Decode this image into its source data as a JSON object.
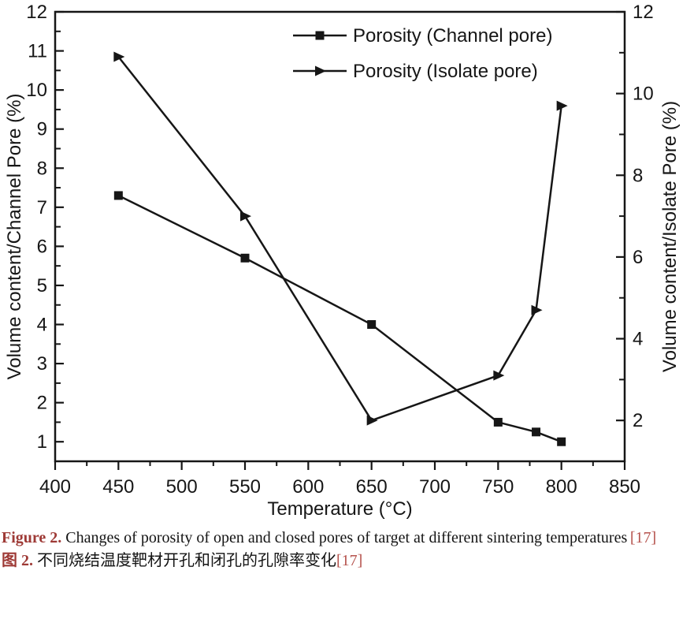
{
  "figure": {
    "ink_color": "#161616",
    "accent_color": "#9e3a36",
    "ref_color": "#b5524c",
    "caption_en": {
      "label": "Figure 2.",
      "text": "Changes of porosity of open and closed pores of target at different sintering temperatures",
      "ref": "[17]"
    },
    "caption_zh": {
      "label": "图 2.",
      "text": "不同烧结温度靶材开孔和闭孔的孔隙率变化",
      "ref": "[17]"
    }
  },
  "chart_data": {
    "type": "line",
    "title": "",
    "xlabel": "Temperature (°C)",
    "ylabel_left": "Volume content/Channel Pore (%)",
    "ylabel_right": "Volume content/Isolate Pore (%)",
    "x": [
      450,
      550,
      650,
      750,
      780,
      800
    ],
    "series": [
      {
        "name": "Porosity (Channel pore)",
        "axis": "left",
        "marker": "square",
        "values": [
          7.3,
          5.7,
          4.0,
          1.5,
          1.25,
          1.0
        ]
      },
      {
        "name": "Porosity (Isolate pore)",
        "axis": "right",
        "marker": "triangle-right",
        "values": [
          10.9,
          7.0,
          2.0,
          3.1,
          4.7,
          9.7
        ]
      }
    ],
    "xlim": [
      400,
      850
    ],
    "x_major_ticks": [
      400,
      450,
      500,
      550,
      600,
      650,
      700,
      750,
      800,
      850
    ],
    "x_minor_step": 25,
    "left_lim": [
      0.5,
      12
    ],
    "left_major_ticks": [
      1,
      2,
      3,
      4,
      5,
      6,
      7,
      8,
      9,
      10,
      11,
      12
    ],
    "left_minor_step": 0.5,
    "right_lim": [
      1,
      12
    ],
    "right_major_ticks": [
      2,
      4,
      6,
      8,
      10,
      12
    ],
    "right_minor_ticks": [
      3,
      5,
      7,
      9,
      11
    ],
    "grid": false,
    "legend_position": "top-center-inside",
    "line_color": "#161616"
  }
}
